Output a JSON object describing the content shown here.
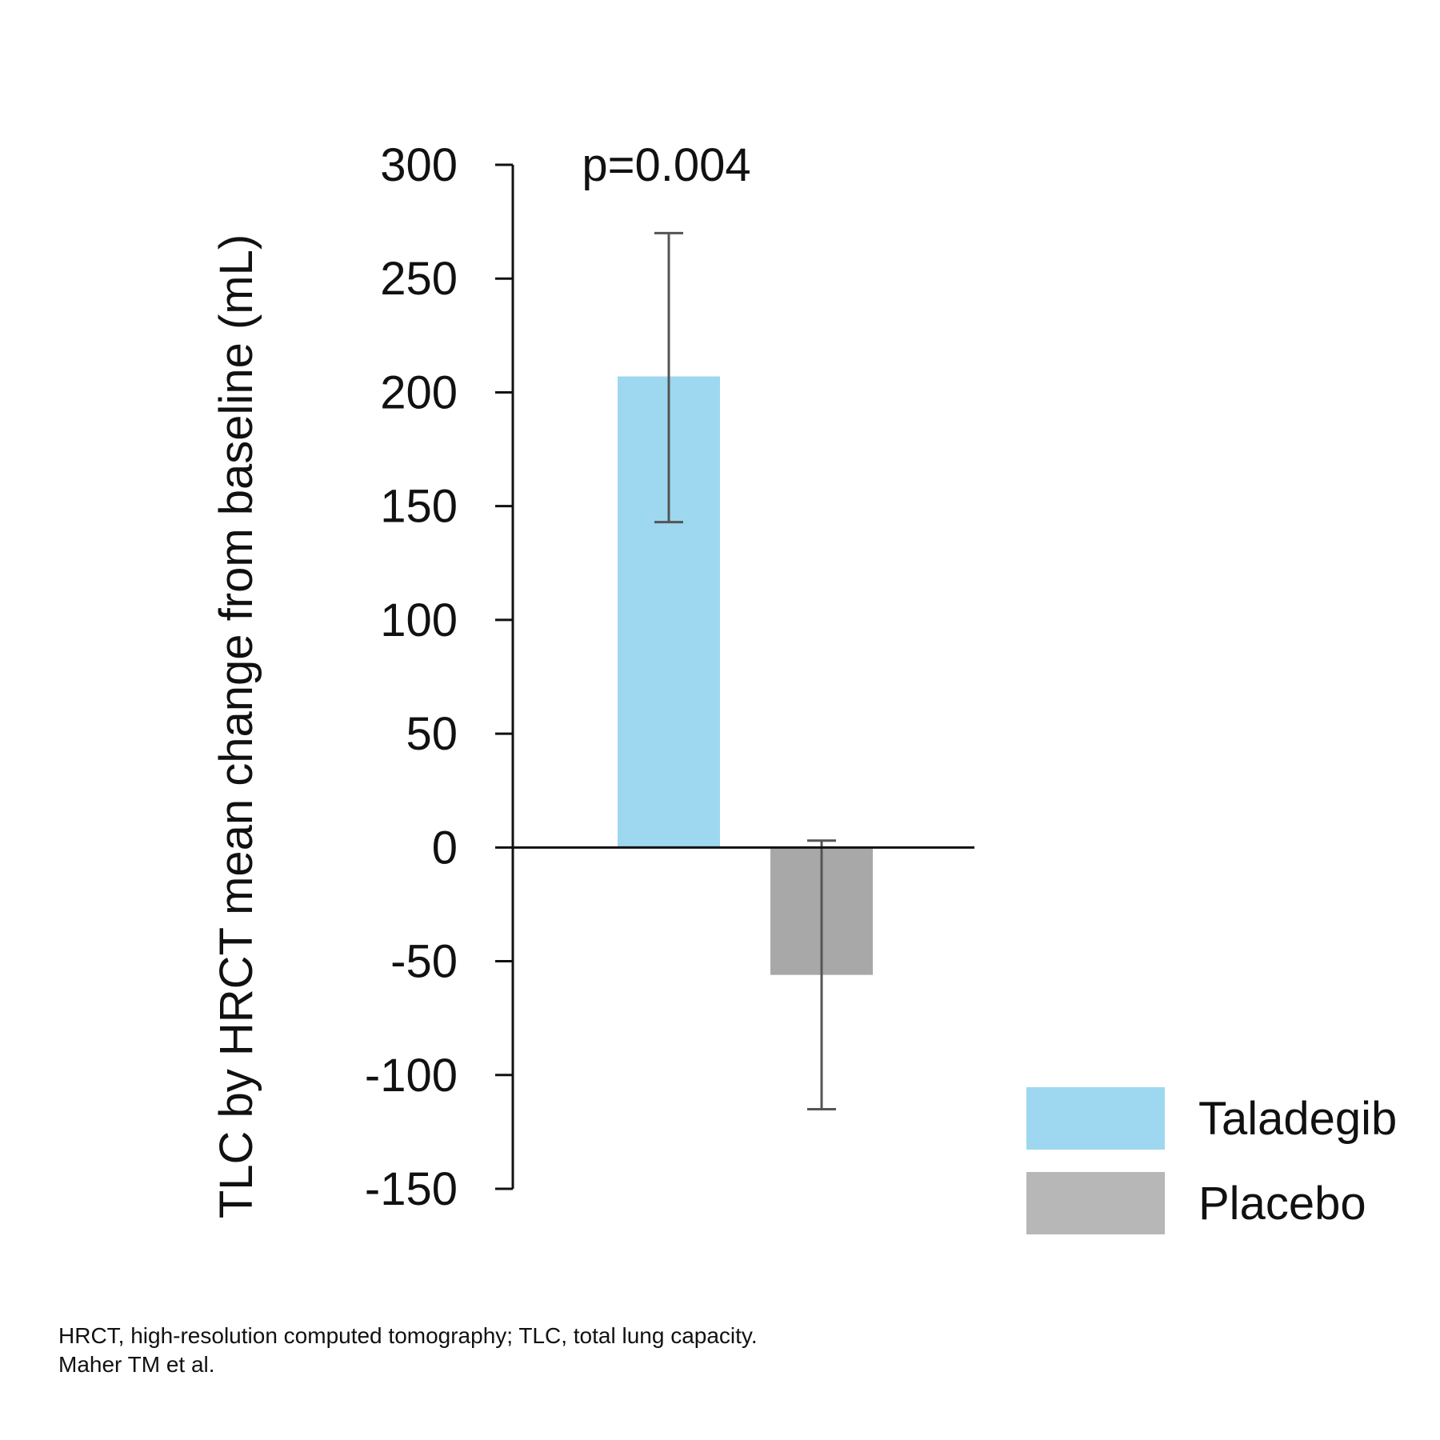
{
  "chart_data": {
    "type": "bar",
    "categories": [
      "Taladegib",
      "Placebo"
    ],
    "values": [
      207,
      -56
    ],
    "error_bars": [
      {
        "low": 143,
        "high": 270
      },
      {
        "low": -115,
        "high": 3
      }
    ],
    "colors": [
      "#9dd8f0",
      "#a8a8a8"
    ],
    "ylabel": "TLC by HRCT mean change from baseline (mL)",
    "xlabel": "",
    "title": "",
    "ylim": [
      -150,
      300
    ],
    "yticks": [
      300,
      250,
      200,
      150,
      100,
      50,
      0,
      -50,
      -100,
      -150
    ],
    "annotation": "p=0.004",
    "legend": {
      "placement": "bottom-right",
      "entries": [
        {
          "label": "Taladegib",
          "color": "#9dd8f0"
        },
        {
          "label": "Placebo",
          "color": "#b7b7b7"
        }
      ]
    },
    "grid": false
  },
  "footnote": {
    "line1": "HRCT, high-resolution computed tomography; TLC, total lung capacity.",
    "line2": "Maher TM et al."
  }
}
